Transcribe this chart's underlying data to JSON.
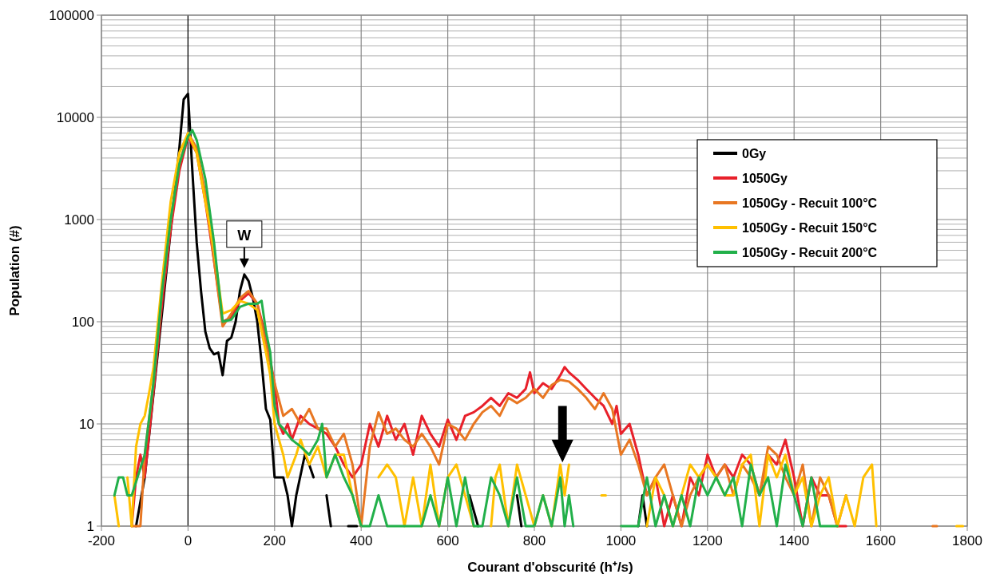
{
  "chart_data": {
    "type": "line",
    "xlabel": "Courant d'obscurité (h⁺/s)",
    "ylabel": "Population (#)",
    "log": "y",
    "grid": true,
    "legend": "top right",
    "line_style": "solid",
    "xlim": [
      -200,
      1800
    ],
    "xticks": [
      -200,
      0,
      200,
      400,
      600,
      800,
      1000,
      1200,
      1400,
      1600,
      1800
    ],
    "ylim": [
      1,
      100000
    ],
    "yticks": [
      1,
      10,
      100,
      1000,
      10000,
      100000
    ],
    "ref_lines": [
      {
        "axis": "x",
        "value": 0,
        "color": "#000000"
      }
    ],
    "annotations": [
      {
        "text": "W",
        "x": 130,
        "y": 290
      }
    ],
    "series": [
      {
        "name": "0Gy",
        "color": "#000000",
        "x": [
          -120,
          -100,
          -20,
          -10,
          0,
          10,
          20,
          30,
          40,
          50,
          60,
          70,
          80,
          90,
          100,
          110,
          120,
          130,
          140,
          150,
          160,
          170,
          180,
          190,
          200,
          220,
          230,
          240,
          250,
          270,
          280,
          290,
          300,
          320,
          330,
          340,
          370,
          390,
          400,
          650,
          670,
          680,
          760,
          770,
          780,
          1040,
          1050,
          1060
        ],
        "values": [
          1,
          3,
          5000,
          15000,
          17000,
          3000,
          600,
          200,
          80,
          55,
          48,
          50,
          30,
          65,
          70,
          100,
          200,
          290,
          250,
          170,
          100,
          40,
          14,
          11,
          3,
          3,
          2,
          1,
          2,
          5,
          4,
          3,
          null,
          2,
          1,
          null,
          1,
          1,
          null,
          2,
          1,
          null,
          2,
          1,
          null,
          1,
          2,
          1
        ]
      },
      {
        "name": "1050Gy",
        "color": "#e8202a",
        "x": [
          -130,
          -120,
          -110,
          -100,
          -80,
          -60,
          -40,
          -20,
          0,
          20,
          40,
          60,
          80,
          100,
          120,
          140,
          160,
          180,
          200,
          210,
          220,
          230,
          240,
          260,
          280,
          300,
          320,
          340,
          360,
          380,
          400,
          420,
          440,
          460,
          480,
          500,
          520,
          540,
          560,
          580,
          600,
          620,
          640,
          660,
          680,
          700,
          720,
          740,
          760,
          780,
          790,
          800,
          820,
          840,
          860,
          870,
          880,
          900,
          920,
          940,
          960,
          980,
          990,
          1000,
          1020,
          1040,
          1060,
          1080,
          1100,
          1120,
          1140,
          1160,
          1180,
          1200,
          1220,
          1240,
          1260,
          1280,
          1300,
          1320,
          1340,
          1360,
          1380,
          1400,
          1420,
          1440,
          1460,
          1480,
          1500,
          1520
        ],
        "values": [
          1,
          3,
          5,
          3,
          20,
          150,
          800,
          3000,
          6500,
          4500,
          1500,
          400,
          100,
          110,
          160,
          190,
          150,
          70,
          25,
          10,
          8,
          10,
          7,
          12,
          10,
          9,
          8,
          6,
          4,
          3,
          4,
          10,
          6,
          12,
          7,
          10,
          5,
          12,
          8,
          6,
          11,
          7,
          12,
          13,
          15,
          18,
          15,
          20,
          18,
          22,
          32,
          20,
          25,
          22,
          30,
          36,
          32,
          27,
          22,
          18,
          15,
          10,
          15,
          8,
          10,
          5,
          2,
          3,
          1,
          2,
          1,
          3,
          2,
          5,
          3,
          4,
          3,
          5,
          4,
          2,
          5,
          4,
          7,
          3,
          1,
          3,
          2,
          2,
          1,
          1
        ]
      },
      {
        "name": "1050Gy - Recuit 100°C",
        "color": "#e87722",
        "x": [
          -130,
          -110,
          -100,
          -80,
          -60,
          -40,
          -20,
          0,
          20,
          40,
          60,
          80,
          100,
          120,
          140,
          160,
          180,
          200,
          220,
          240,
          260,
          280,
          300,
          320,
          340,
          360,
          380,
          400,
          420,
          440,
          460,
          480,
          500,
          520,
          540,
          560,
          580,
          600,
          620,
          640,
          660,
          680,
          700,
          720,
          740,
          760,
          780,
          800,
          820,
          840,
          860,
          880,
          900,
          920,
          940,
          960,
          980,
          1000,
          1020,
          1040,
          1060,
          1080,
          1100,
          1120,
          1140,
          1160,
          1180,
          1200,
          1220,
          1240,
          1260,
          1280,
          1300,
          1320,
          1340,
          1360,
          1380,
          1400,
          1420,
          1440,
          1460,
          1480,
          1500,
          1520,
          1540,
          1720,
          1730
        ],
        "values": [
          1,
          1,
          5,
          25,
          200,
          1000,
          3500,
          7000,
          5000,
          1800,
          400,
          90,
          120,
          170,
          200,
          150,
          60,
          25,
          12,
          14,
          10,
          14,
          9,
          9,
          6,
          8,
          4,
          1,
          6,
          13,
          8,
          9,
          7,
          6,
          8,
          6,
          4,
          10,
          9,
          7,
          10,
          13,
          15,
          12,
          18,
          16,
          18,
          22,
          18,
          24,
          27,
          26,
          22,
          18,
          14,
          20,
          14,
          5,
          7,
          4,
          2,
          3,
          4,
          2,
          1,
          2,
          3,
          4,
          3,
          4,
          2,
          4,
          3,
          2,
          6,
          5,
          3,
          2,
          4,
          1,
          3,
          2,
          1,
          2,
          null,
          1,
          1
        ]
      },
      {
        "name": "1050Gy - Recuit 150°C",
        "color": "#ffc000",
        "x": [
          -170,
          -160,
          -150,
          -140,
          -130,
          -120,
          -110,
          -100,
          -90,
          -80,
          -60,
          -40,
          -20,
          0,
          20,
          40,
          60,
          80,
          100,
          120,
          140,
          160,
          180,
          190,
          200,
          220,
          230,
          250,
          260,
          280,
          300,
          320,
          340,
          360,
          380,
          400,
          420,
          440,
          460,
          480,
          500,
          520,
          540,
          560,
          580,
          600,
          620,
          640,
          660,
          680,
          700,
          710,
          720,
          740,
          760,
          780,
          800,
          820,
          840,
          860,
          870,
          880,
          890,
          955,
          965,
          975,
          1060,
          1080,
          1100,
          1120,
          1140,
          1160,
          1180,
          1200,
          1220,
          1240,
          1260,
          1280,
          1300,
          1320,
          1340,
          1360,
          1380,
          1400,
          1420,
          1440,
          1460,
          1480,
          1500,
          1520,
          1540,
          1560,
          1580,
          1590,
          1600,
          1775,
          1790
        ],
        "values": [
          2,
          1,
          null,
          3,
          1,
          6,
          10,
          12,
          20,
          35,
          250,
          1500,
          4500,
          7000,
          4500,
          1500,
          500,
          120,
          130,
          160,
          150,
          130,
          50,
          30,
          10,
          5,
          3,
          5,
          7,
          4,
          6,
          3,
          5,
          5,
          2,
          1,
          null,
          3,
          4,
          3,
          1,
          3,
          1,
          4,
          1,
          3,
          4,
          2,
          1,
          null,
          1,
          3,
          4,
          1,
          4,
          2,
          1,
          2,
          1,
          4,
          2,
          4,
          null,
          2,
          2,
          null,
          1,
          3,
          2,
          1,
          2,
          4,
          3,
          4,
          3,
          2,
          2,
          4,
          5,
          1,
          5,
          3,
          5,
          2,
          3,
          1,
          2,
          3,
          1,
          2,
          1,
          3,
          4,
          1,
          null,
          1,
          1
        ]
      },
      {
        "name": "1050Gy - Recuit 200°C",
        "color": "#22b04a",
        "x": [
          -170,
          -160,
          -150,
          -140,
          -130,
          -100,
          -80,
          -60,
          -40,
          -20,
          0,
          10,
          20,
          40,
          60,
          80,
          100,
          120,
          140,
          160,
          170,
          180,
          190,
          200,
          210,
          220,
          240,
          260,
          280,
          300,
          310,
          320,
          340,
          360,
          380,
          400,
          420,
          440,
          460,
          480,
          500,
          520,
          540,
          560,
          580,
          600,
          620,
          640,
          660,
          680,
          700,
          720,
          740,
          760,
          780,
          800,
          820,
          840,
          860,
          870,
          880,
          890,
          900,
          1000,
          1040,
          1060,
          1080,
          1100,
          1120,
          1140,
          1160,
          1180,
          1200,
          1220,
          1240,
          1260,
          1280,
          1300,
          1320,
          1340,
          1360,
          1380,
          1400,
          1420,
          1440,
          1460,
          1480,
          1500
        ],
        "values": [
          2,
          3,
          3,
          2,
          2,
          5,
          25,
          200,
          1000,
          3500,
          6500,
          7500,
          6000,
          2500,
          600,
          100,
          105,
          140,
          150,
          150,
          160,
          80,
          50,
          15,
          10,
          9,
          7,
          6,
          5,
          7,
          10,
          3,
          5,
          3,
          2,
          1,
          1,
          2,
          1,
          1,
          1,
          1,
          1,
          2,
          1,
          3,
          1,
          3,
          1,
          1,
          3,
          2,
          1,
          3,
          1,
          1,
          2,
          1,
          3,
          1,
          2,
          1,
          null,
          1,
          1,
          3,
          1,
          2,
          1,
          2,
          1,
          3,
          2,
          3,
          2,
          3,
          1,
          4,
          2,
          3,
          1,
          4,
          2,
          1,
          3,
          1,
          1,
          1
        ]
      }
    ]
  }
}
